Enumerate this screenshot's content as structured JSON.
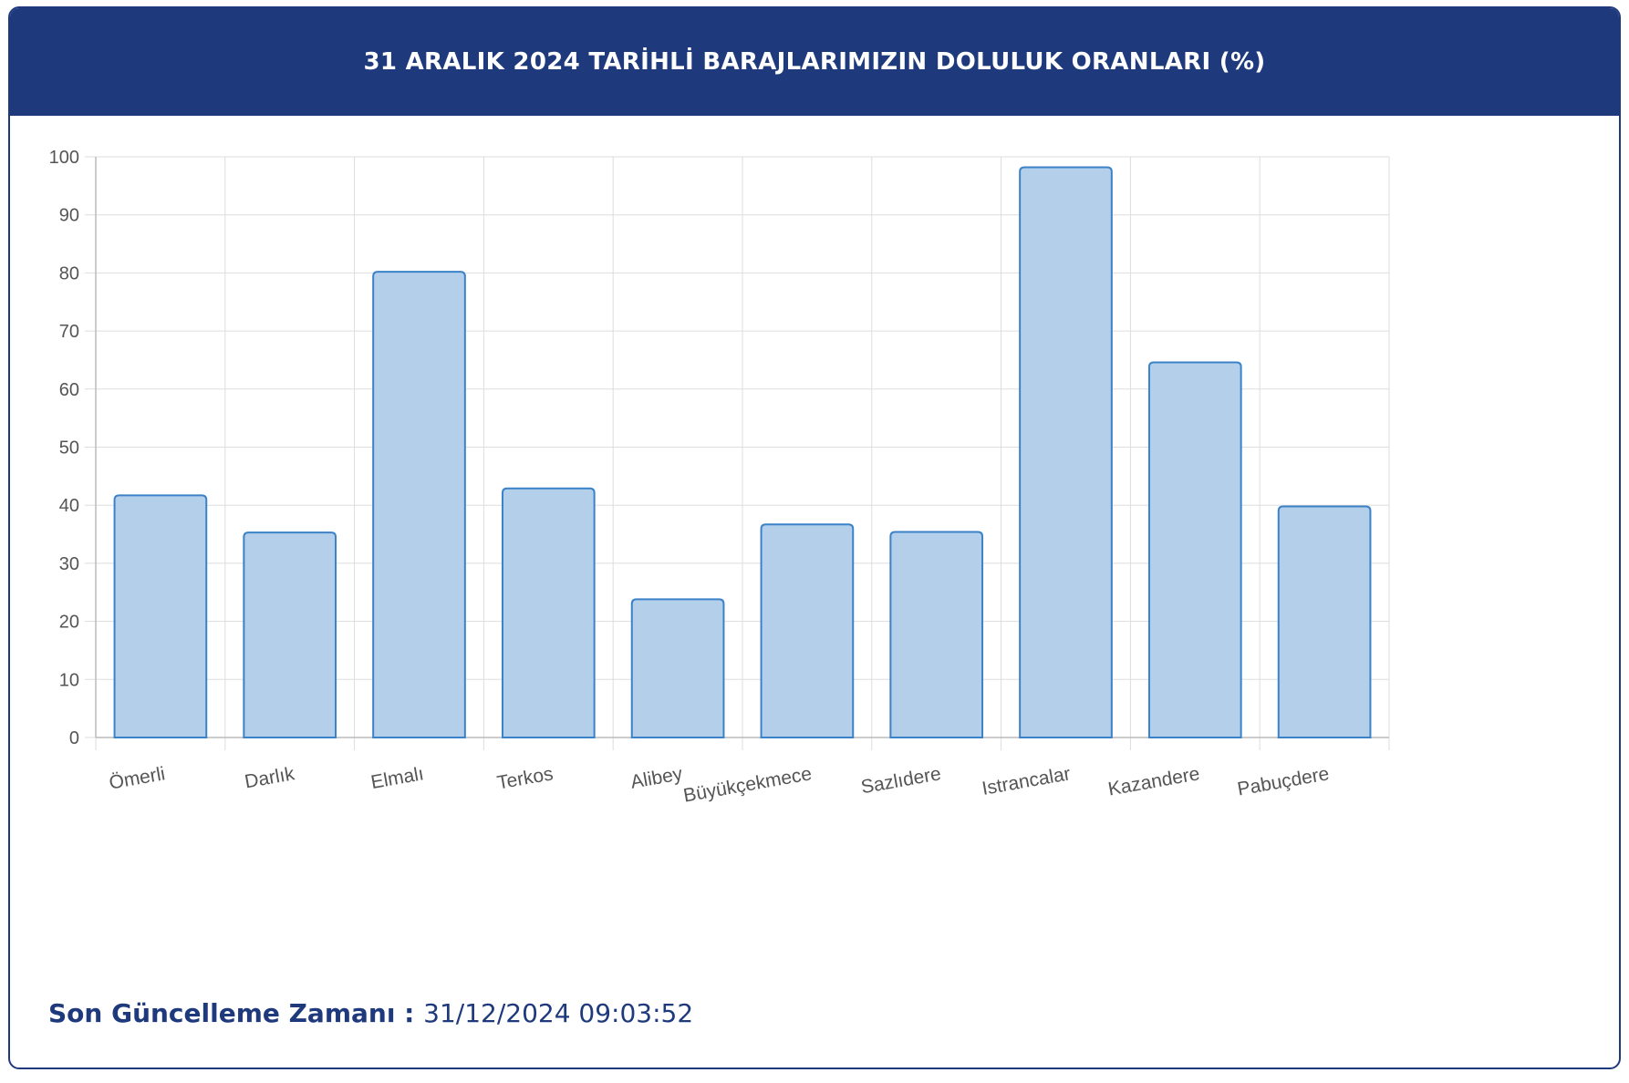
{
  "header": {
    "title": "31 ARALIK 2024 TARİHLİ BARAJLARIMIZIN DOLULUK ORANLARI (%)"
  },
  "footer": {
    "label": "Son Güncelleme Zamanı",
    "separator": " : ",
    "value": "31/12/2024 09:03:52"
  },
  "colors": {
    "header_bg": "#1e3a7d",
    "bar_fill": "#b3cfea",
    "bar_stroke": "#3b82c8",
    "grid": "#dddddd",
    "tick_text": "#555555"
  },
  "chart_data": {
    "type": "bar",
    "categories": [
      "Ömerli",
      "Darlık",
      "Elmalı",
      "Terkos",
      "Alibey",
      "Büyükçekmece",
      "Sazlıdere",
      "Istrancalar",
      "Kazandere",
      "Pabuçdere"
    ],
    "values": [
      41.7,
      35.3,
      80.2,
      42.9,
      23.8,
      36.7,
      35.4,
      98.2,
      64.6,
      39.8
    ],
    "yticks": [
      0,
      10,
      20,
      30,
      40,
      50,
      60,
      70,
      80,
      90,
      100
    ],
    "ylim": [
      0,
      100
    ],
    "grid": true,
    "legend": "none"
  }
}
